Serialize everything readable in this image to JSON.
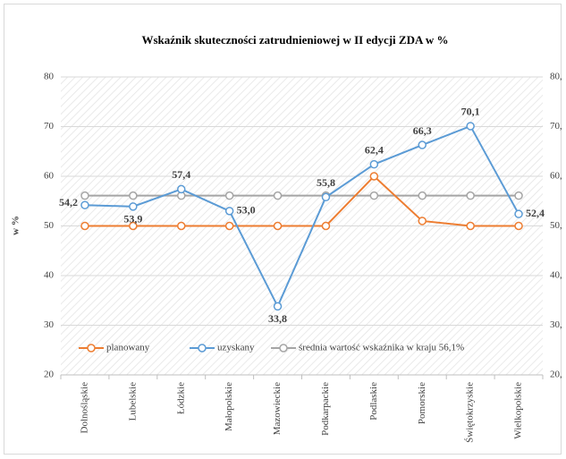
{
  "chart_data": {
    "type": "line",
    "title": "Wskaźnik skuteczności zatrudnieniowej  w II edycji ZDA w %",
    "ylabel": "w %",
    "categories": [
      "Dolnośląskie",
      "Lubelskie",
      "Łódzkie",
      "Małopolskie",
      "Mazowieckie",
      "Podkarpackie",
      "Podlaskie",
      "Pomorskie",
      "Świętokrzyskie",
      "Wielkopolskie"
    ],
    "series": [
      {
        "name": "planowany",
        "color": "#ed7d31",
        "values": [
          50,
          50,
          50,
          50,
          50,
          50,
          60,
          51,
          50,
          50
        ]
      },
      {
        "name": "uzyskany",
        "color": "#5b9bd5",
        "values": [
          54.2,
          53.9,
          57.4,
          53.0,
          33.8,
          55.8,
          62.4,
          66.3,
          70.1,
          52.4
        ],
        "value_labels": [
          "54,2",
          "53,9",
          "57,4",
          "53,0",
          "33,8",
          "55,8",
          "62,4",
          "66,3",
          "70,1",
          "52,4"
        ]
      },
      {
        "name": "średnia wartość wskaźnika w kraju 56,1%",
        "color": "#a5a5a5",
        "values": [
          56.1,
          56.1,
          56.1,
          56.1,
          56.1,
          56.1,
          56.1,
          56.1,
          56.1,
          56.1
        ]
      }
    ],
    "ylim": [
      20,
      80
    ],
    "yticks": [
      20,
      30,
      40,
      50,
      60,
      70,
      80
    ],
    "y2lim": [
      20,
      80
    ],
    "y2ticks": [
      {
        "value": 20,
        "label": "20,"
      },
      {
        "value": 30,
        "label": "30,"
      },
      {
        "value": 40,
        "label": "40,"
      },
      {
        "value": 50,
        "label": "50,"
      },
      {
        "value": 60,
        "label": "60,"
      },
      {
        "value": 70,
        "label": "70,"
      },
      {
        "value": 80,
        "label": "80,"
      }
    ],
    "grid": true,
    "legend": "bottom"
  }
}
